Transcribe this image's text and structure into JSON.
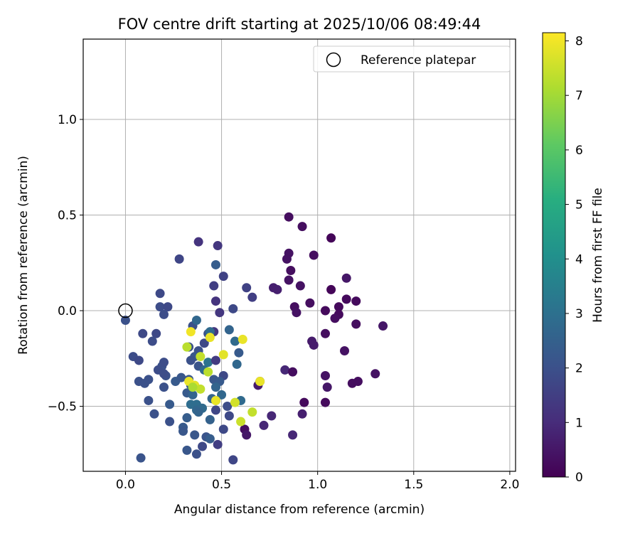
{
  "chart_data": {
    "type": "scatter",
    "title": "FOV centre drift starting at 2025/10/06 08:49:44",
    "xlabel": "Angular distance from reference (arcmin)",
    "ylabel": "Rotation from reference (arcmin)",
    "xlim": [
      -0.22,
      2.03
    ],
    "ylim": [
      -0.84,
      1.42
    ],
    "grid": true,
    "x_ticks": [
      0.0,
      0.5,
      1.0,
      1.5,
      2.0
    ],
    "x_tick_labels": [
      "0.0",
      "0.5",
      "1.0",
      "1.5",
      "2.0"
    ],
    "y_ticks": [
      -0.5,
      0.0,
      0.5,
      1.0
    ],
    "y_tick_labels": [
      "−0.5",
      "0.0",
      "0.5",
      "1.0"
    ],
    "legend": {
      "label": "Reference platepar",
      "placement": "top-right"
    },
    "reference_point": {
      "x": 0.0,
      "y": 0.0
    },
    "colorbar": {
      "label": "Hours from first FF file",
      "range": [
        0,
        8.15
      ],
      "ticks": [
        0,
        1,
        2,
        3,
        4,
        5,
        6,
        7,
        8
      ],
      "tick_labels": [
        "0",
        "1",
        "2",
        "3",
        "4",
        "5",
        "6",
        "7",
        "8"
      ],
      "colormap": "viridis"
    },
    "points": [
      [
        0.85,
        0.49,
        0.3
      ],
      [
        0.92,
        0.44,
        0.3
      ],
      [
        1.07,
        0.38,
        0.1
      ],
      [
        0.98,
        0.29,
        0.3
      ],
      [
        0.85,
        0.3,
        0.4
      ],
      [
        0.84,
        0.27,
        0.4
      ],
      [
        0.86,
        0.21,
        0.3
      ],
      [
        0.85,
        0.16,
        0.4
      ],
      [
        0.91,
        0.13,
        0.4
      ],
      [
        0.77,
        0.12,
        0.7
      ],
      [
        0.79,
        0.11,
        0.7
      ],
      [
        0.96,
        0.04,
        0.3
      ],
      [
        0.88,
        0.02,
        0.3
      ],
      [
        0.89,
        -0.01,
        0.4
      ],
      [
        1.04,
        0.0,
        0.2
      ],
      [
        1.11,
        0.02,
        0.2
      ],
      [
        1.11,
        -0.02,
        0.2
      ],
      [
        1.09,
        -0.04,
        0.3
      ],
      [
        1.15,
        0.06,
        0.2
      ],
      [
        1.15,
        0.17,
        0.5
      ],
      [
        1.2,
        0.05,
        0.2
      ],
      [
        1.07,
        0.11,
        0.1
      ],
      [
        1.2,
        -0.07,
        0.3
      ],
      [
        1.34,
        -0.08,
        0.5
      ],
      [
        1.04,
        -0.12,
        0.3
      ],
      [
        0.97,
        -0.16,
        0.6
      ],
      [
        0.98,
        -0.18,
        0.6
      ],
      [
        1.14,
        -0.21,
        0.4
      ],
      [
        0.83,
        -0.31,
        0.9
      ],
      [
        0.87,
        -0.32,
        0.3
      ],
      [
        1.04,
        -0.34,
        0.4
      ],
      [
        1.05,
        -0.4,
        0.5
      ],
      [
        1.18,
        -0.38,
        0.3
      ],
      [
        1.21,
        -0.37,
        0.3
      ],
      [
        1.3,
        -0.33,
        0.4
      ],
      [
        0.93,
        -0.48,
        0.2
      ],
      [
        1.04,
        -0.48,
        0.2
      ],
      [
        0.92,
        -0.54,
        0.7
      ],
      [
        0.87,
        -0.65,
        0.9
      ],
      [
        0.76,
        -0.55,
        0.9
      ],
      [
        0.72,
        -0.6,
        0.9
      ],
      [
        0.62,
        -0.62,
        0.3
      ],
      [
        0.63,
        -0.65,
        0.5
      ],
      [
        0.69,
        -0.39,
        0.6
      ],
      [
        0.7,
        -0.37,
        0.6
      ],
      [
        0.38,
        0.36,
        1.2
      ],
      [
        0.48,
        0.34,
        1.3
      ],
      [
        0.28,
        0.27,
        1.7
      ],
      [
        0.47,
        0.24,
        2.4
      ],
      [
        0.51,
        0.18,
        1.6
      ],
      [
        0.46,
        0.13,
        1.5
      ],
      [
        0.18,
        0.09,
        1.8
      ],
      [
        0.63,
        0.12,
        1.6
      ],
      [
        0.66,
        0.07,
        1.5
      ],
      [
        0.47,
        0.05,
        1.2
      ],
      [
        0.18,
        0.02,
        1.9
      ],
      [
        0.22,
        0.02,
        1.8
      ],
      [
        0.2,
        -0.02,
        1.9
      ],
      [
        0.49,
        -0.01,
        1.3
      ],
      [
        0.56,
        0.01,
        1.8
      ],
      [
        0.0,
        -0.05,
        2.0
      ],
      [
        0.09,
        -0.12,
        1.8
      ],
      [
        0.16,
        -0.12,
        1.8
      ],
      [
        0.14,
        -0.16,
        1.9
      ],
      [
        0.35,
        -0.08,
        2.0
      ],
      [
        0.46,
        -0.11,
        1.3
      ],
      [
        0.43,
        -0.12,
        2.0
      ],
      [
        0.41,
        -0.17,
        1.8
      ],
      [
        0.38,
        -0.21,
        2.0
      ],
      [
        0.33,
        -0.19,
        2.0
      ],
      [
        0.36,
        -0.24,
        2.2
      ],
      [
        0.34,
        -0.26,
        2.0
      ],
      [
        0.38,
        -0.29,
        2.1
      ],
      [
        0.04,
        -0.24,
        1.9
      ],
      [
        0.07,
        -0.26,
        1.8
      ],
      [
        0.19,
        -0.29,
        2.0
      ],
      [
        0.2,
        -0.27,
        1.9
      ],
      [
        0.17,
        -0.31,
        1.9
      ],
      [
        0.21,
        -0.34,
        2.0
      ],
      [
        0.2,
        -0.33,
        1.9
      ],
      [
        0.12,
        -0.36,
        2.0
      ],
      [
        0.07,
        -0.37,
        2.0
      ],
      [
        0.1,
        -0.38,
        2.0
      ],
      [
        0.2,
        -0.4,
        2.0
      ],
      [
        0.26,
        -0.37,
        2.3
      ],
      [
        0.29,
        -0.35,
        2.2
      ],
      [
        0.12,
        -0.47,
        2.0
      ],
      [
        0.15,
        -0.54,
        2.0
      ],
      [
        0.23,
        -0.49,
        2.3
      ],
      [
        0.23,
        -0.58,
        2.0
      ],
      [
        0.3,
        -0.61,
        2.3
      ],
      [
        0.3,
        -0.63,
        2.2
      ],
      [
        0.32,
        -0.56,
        2.4
      ],
      [
        0.32,
        -0.73,
        2.2
      ],
      [
        0.37,
        -0.75,
        2.0
      ],
      [
        0.36,
        -0.65,
        2.2
      ],
      [
        0.4,
        -0.71,
        1.8
      ],
      [
        0.42,
        -0.66,
        2.1
      ],
      [
        0.44,
        -0.67,
        2.4
      ],
      [
        0.48,
        -0.7,
        1.5
      ],
      [
        0.51,
        -0.62,
        1.8
      ],
      [
        0.56,
        -0.78,
        1.7
      ],
      [
        0.08,
        -0.77,
        2.1
      ],
      [
        0.37,
        -0.05,
        2.7
      ],
      [
        0.44,
        -0.11,
        2.8
      ],
      [
        0.54,
        -0.1,
        2.6
      ],
      [
        0.57,
        -0.16,
        2.8
      ],
      [
        0.59,
        -0.22,
        2.3
      ],
      [
        0.58,
        -0.28,
        2.7
      ],
      [
        0.43,
        -0.27,
        3.1
      ],
      [
        0.47,
        -0.26,
        1.4
      ],
      [
        0.51,
        -0.34,
        1.8
      ],
      [
        0.41,
        -0.31,
        2.8
      ],
      [
        0.33,
        -0.36,
        2.2
      ],
      [
        0.34,
        -0.39,
        2.3
      ],
      [
        0.32,
        -0.43,
        2.3
      ],
      [
        0.35,
        -0.44,
        2.6
      ],
      [
        0.37,
        -0.49,
        2.9
      ],
      [
        0.34,
        -0.49,
        2.9
      ],
      [
        0.37,
        -0.52,
        2.7
      ],
      [
        0.4,
        -0.51,
        2.8
      ],
      [
        0.45,
        -0.46,
        2.6
      ],
      [
        0.47,
        -0.47,
        2.4
      ],
      [
        0.47,
        -0.52,
        1.7
      ],
      [
        0.53,
        -0.5,
        1.9
      ],
      [
        0.54,
        -0.55,
        1.8
      ],
      [
        0.6,
        -0.47,
        2.8
      ],
      [
        0.38,
        -0.53,
        2.6
      ],
      [
        0.44,
        -0.57,
        2.5
      ],
      [
        0.46,
        -0.36,
        2.2
      ],
      [
        0.49,
        -0.37,
        2.3
      ],
      [
        0.47,
        -0.4,
        2.6
      ],
      [
        0.5,
        -0.44,
        2.7
      ],
      [
        0.34,
        -0.11,
        8.0
      ],
      [
        0.44,
        -0.14,
        7.9
      ],
      [
        0.61,
        -0.15,
        7.9
      ],
      [
        0.32,
        -0.19,
        7.3
      ],
      [
        0.39,
        -0.24,
        7.4
      ],
      [
        0.51,
        -0.23,
        7.8
      ],
      [
        0.43,
        -0.32,
        7.3
      ],
      [
        0.36,
        -0.39,
        7.8
      ],
      [
        0.33,
        -0.37,
        7.9
      ],
      [
        0.39,
        -0.41,
        7.4
      ],
      [
        0.47,
        -0.47,
        7.9
      ],
      [
        0.57,
        -0.48,
        7.6
      ],
      [
        0.7,
        -0.37,
        7.9
      ],
      [
        0.66,
        -0.53,
        7.4
      ],
      [
        0.6,
        -0.58,
        7.5
      ],
      [
        0.35,
        -0.4,
        7.1
      ]
    ]
  }
}
